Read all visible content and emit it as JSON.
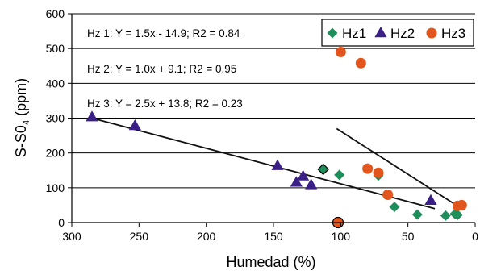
{
  "chart_data": {
    "type": "scatter",
    "xlabel": "Humedad (%)",
    "ylabel": "S-S0",
    "ylabel_sub": "4",
    "ylabel_unit": " (ppm)",
    "xlim": [
      300,
      0
    ],
    "ylim": [
      0,
      600
    ],
    "x_reversed": true,
    "xticks": [
      300,
      250,
      200,
      150,
      100,
      50,
      0
    ],
    "yticks": [
      0,
      100,
      200,
      300,
      400,
      500,
      600
    ],
    "grid": "horizontal",
    "legend_position": "top-right",
    "equations": [
      "Hz 1: Y = 1.5x - 14.9; R2 = 0.84",
      "Hz 2: Y = 1.0x + 9.1; R2 = 0.95",
      "Hz 3: Y = 2.5x + 13.8; R2 = 0.23"
    ],
    "series": [
      {
        "name": "Hz1",
        "marker": "diamond",
        "color": "#1e8f5a",
        "points": [
          [
            113,
            153
          ],
          [
            101,
            137
          ],
          [
            72,
            135
          ],
          [
            60,
            45
          ],
          [
            43,
            23
          ],
          [
            22,
            20
          ],
          [
            15,
            25
          ],
          [
            13,
            22
          ]
        ]
      },
      {
        "name": "Hz2",
        "marker": "triangle",
        "color": "#3a1f86",
        "points": [
          [
            285,
            303
          ],
          [
            253,
            278
          ],
          [
            147,
            163
          ],
          [
            128,
            133
          ],
          [
            133,
            115
          ],
          [
            122,
            108
          ],
          [
            33,
            63
          ]
        ]
      },
      {
        "name": "Hz3",
        "marker": "circle",
        "color": "#e2561e",
        "points": [
          [
            100,
            490
          ],
          [
            85,
            458
          ],
          [
            80,
            155
          ],
          [
            72,
            143
          ],
          [
            65,
            80
          ],
          [
            13,
            48
          ],
          [
            10,
            50
          ],
          [
            102,
            0
          ]
        ]
      }
    ],
    "trendlines": [
      {
        "from": [
          285,
          300
        ],
        "to": [
          30,
          40
        ]
      },
      {
        "from": [
          103,
          270
        ],
        "to": [
          10,
          40
        ]
      }
    ]
  }
}
